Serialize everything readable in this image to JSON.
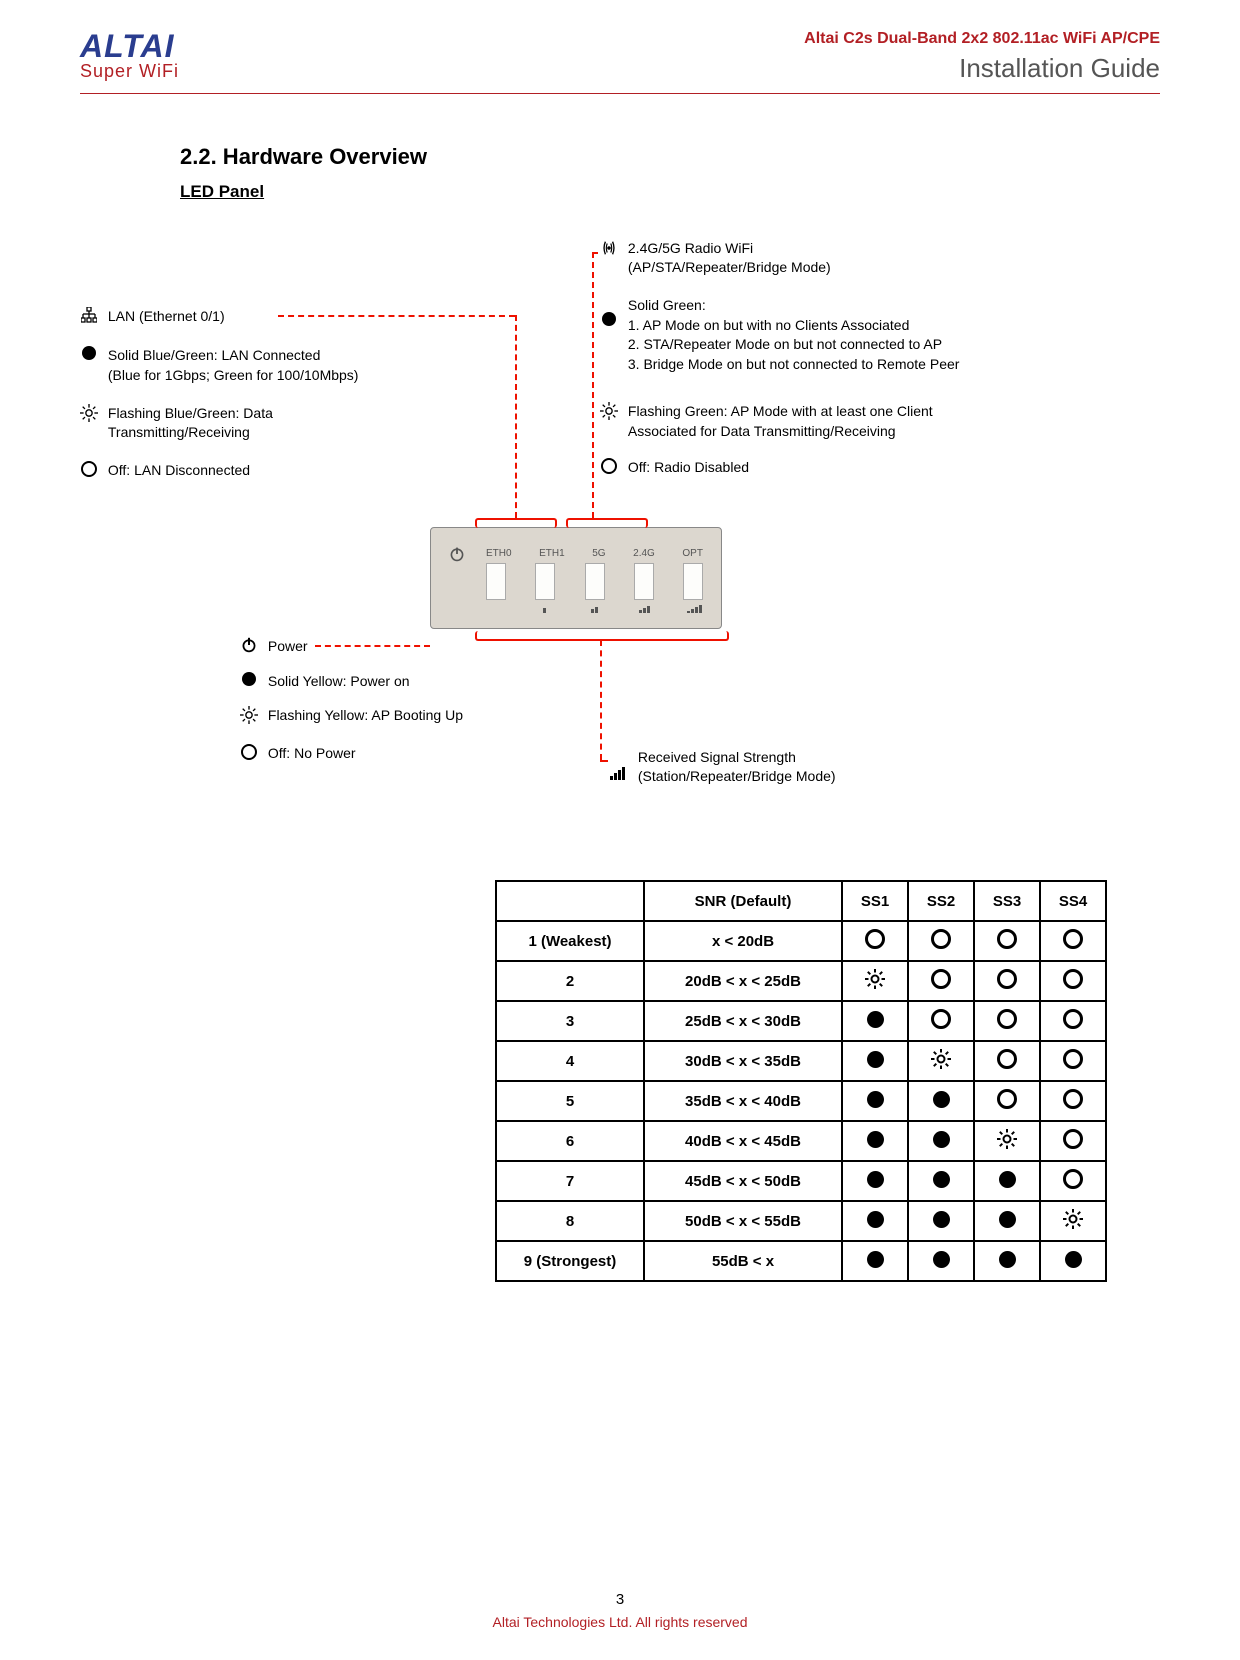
{
  "header": {
    "logo_main": "ALTAI",
    "logo_sub": "Super WiFi",
    "product": "Altai C2s Dual-Band 2x2 802.11ac WiFi AP/CPE",
    "guide": "Installation Guide"
  },
  "section": {
    "number_title": "2.2.  Hardware Overview",
    "subsection": "LED Panel"
  },
  "panel": {
    "labels": [
      "ETH0",
      "ETH1",
      "5G",
      "2.4G",
      "OPT"
    ]
  },
  "lan": {
    "title": "LAN (Ethernet 0/1)",
    "solid": "Solid Blue/Green: LAN Connected\n(Blue for 1Gbps; Green for 100/10Mbps)",
    "flash": "Flashing Blue/Green: Data\nTransmitting/Receiving",
    "off": "Off: LAN Disconnected"
  },
  "power": {
    "title": "Power",
    "solid": "Solid Yellow: Power on",
    "flash": "Flashing Yellow: AP Booting Up",
    "off": "Off: No Power"
  },
  "radio": {
    "title": "2.4G/5G Radio WiFi\n(AP/STA/Repeater/Bridge Mode)",
    "solid_hdr": "Solid Green:",
    "solid_1": "1. AP Mode on but with no Clients Associated",
    "solid_2": "2. STA/Repeater Mode on but not connected to AP",
    "solid_3": "3. Bridge Mode on but not connected to Remote Peer",
    "flash": "Flashing Green: AP Mode with at least one Client\nAssociated for Data Transmitting/Receiving",
    "off": "Off: Radio Disabled"
  },
  "rss": {
    "title": "Received Signal Strength\n(Station/Repeater/Bridge Mode)"
  },
  "snr_table": {
    "headers": [
      "",
      "SNR (Default)",
      "SS1",
      "SS2",
      "SS3",
      "SS4"
    ],
    "rows": [
      {
        "lvl": "1 (Weakest)",
        "snr": "x < 20dB",
        "ss": [
          "off",
          "off",
          "off",
          "off"
        ]
      },
      {
        "lvl": "2",
        "snr": "20dB < x < 25dB",
        "ss": [
          "flash",
          "off",
          "off",
          "off"
        ]
      },
      {
        "lvl": "3",
        "snr": "25dB < x < 30dB",
        "ss": [
          "on",
          "off",
          "off",
          "off"
        ]
      },
      {
        "lvl": "4",
        "snr": "30dB < x < 35dB",
        "ss": [
          "on",
          "flash",
          "off",
          "off"
        ]
      },
      {
        "lvl": "5",
        "snr": "35dB < x < 40dB",
        "ss": [
          "on",
          "on",
          "off",
          "off"
        ]
      },
      {
        "lvl": "6",
        "snr": "40dB < x < 45dB",
        "ss": [
          "on",
          "on",
          "flash",
          "off"
        ]
      },
      {
        "lvl": "7",
        "snr": "45dB < x < 50dB",
        "ss": [
          "on",
          "on",
          "on",
          "off"
        ]
      },
      {
        "lvl": "8",
        "snr": "50dB < x < 55dB",
        "ss": [
          "on",
          "on",
          "on",
          "flash"
        ]
      },
      {
        "lvl": "9 (Strongest)",
        "snr": "55dB < x",
        "ss": [
          "on",
          "on",
          "on",
          "on"
        ]
      }
    ]
  },
  "footer": {
    "page": "3",
    "copyright": "Altai Technologies Ltd. All rights reserved"
  },
  "colors": {
    "brand_red": "#b21f24",
    "brand_blue": "#2a3d8f",
    "dash_red": "#e10"
  }
}
